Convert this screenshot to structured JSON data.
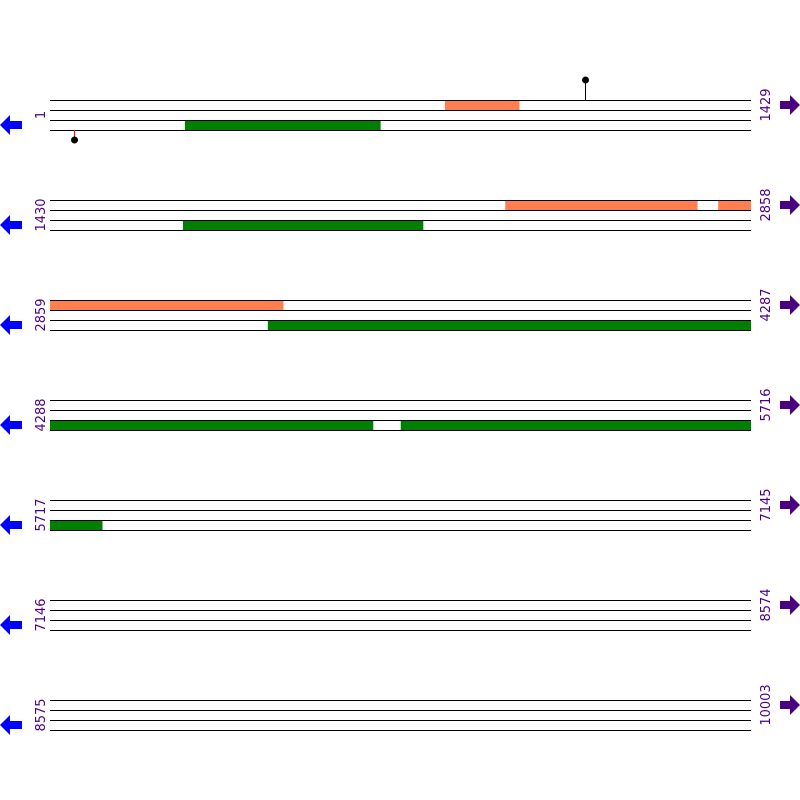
{
  "colors": {
    "line": "#000000",
    "feature_orange": "#ff7f50",
    "feature_green": "#008000",
    "label": "#4b0082",
    "arrow_left": "#0000ff",
    "arrow_right": "#4b0082",
    "marker_stem_bottom": "#ff0000",
    "marker_dot": "#000000"
  },
  "icons": {
    "left": "arrow-left-icon",
    "right": "arrow-right-icon"
  },
  "rows": [
    {
      "start": "1",
      "end": "1429",
      "s": 1,
      "e": 1429,
      "features": [
        {
          "color": "orange",
          "track": 0,
          "from": 806,
          "to": 957
        },
        {
          "color": "green",
          "track": 2,
          "from": 276,
          "to": 674
        }
      ],
      "markers": [
        {
          "pos": 1092,
          "side": "top"
        },
        {
          "pos": 50,
          "side": "bottom"
        }
      ]
    },
    {
      "start": "1430",
      "end": "2858",
      "s": 1430,
      "e": 2858,
      "features": [
        {
          "color": "orange",
          "track": 0,
          "from": 2358,
          "to": 2749
        },
        {
          "color": "orange",
          "track": 0,
          "from": 2792,
          "to": 2858
        },
        {
          "color": "green",
          "track": 2,
          "from": 1701,
          "to": 2190
        }
      ],
      "markers": []
    },
    {
      "start": "2859",
      "end": "4287",
      "s": 2859,
      "e": 4287,
      "features": [
        {
          "color": "orange",
          "track": 0,
          "from": 2859,
          "to": 3334
        },
        {
          "color": "green",
          "track": 2,
          "from": 3303,
          "to": 4287
        }
      ],
      "markers": []
    },
    {
      "start": "4288",
      "end": "5716",
      "s": 4288,
      "e": 5716,
      "features": [
        {
          "color": "green",
          "track": 2,
          "from": 4288,
          "to": 4946
        },
        {
          "color": "green",
          "track": 2,
          "from": 5003,
          "to": 5716
        }
      ],
      "markers": []
    },
    {
      "start": "5717",
      "end": "7145",
      "s": 5717,
      "e": 7145,
      "features": [
        {
          "color": "green",
          "track": 2,
          "from": 5717,
          "to": 5823
        }
      ],
      "markers": []
    },
    {
      "start": "7146",
      "end": "8574",
      "s": 7146,
      "e": 8574,
      "features": [],
      "markers": []
    },
    {
      "start": "8575",
      "end": "10003",
      "s": 8575,
      "e": 10003,
      "features": [],
      "markers": []
    }
  ]
}
